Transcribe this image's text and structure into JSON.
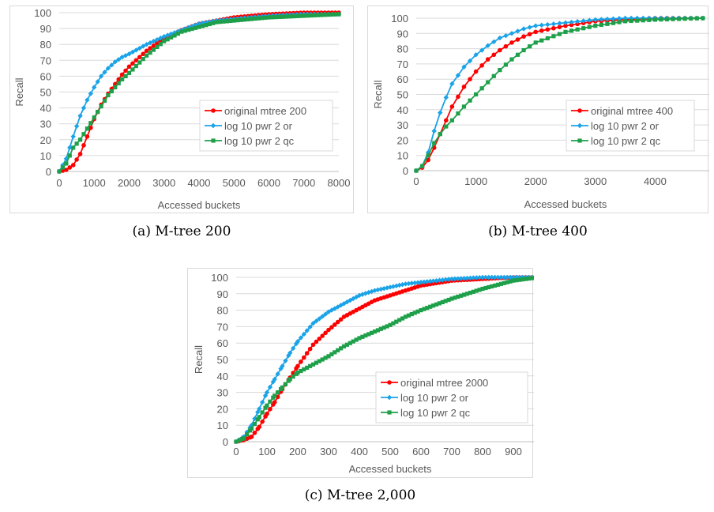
{
  "colors": {
    "original": "#ff0000",
    "log_or": "#1aa3e8",
    "log_qc": "#1ea04a",
    "grid": "#d9d9d9",
    "axis": "#bfbfbf",
    "text": "#595959"
  },
  "chart_data": [
    {
      "type": "line",
      "caption": "(a) M-tree 200",
      "xlabel": "Accessed buckets",
      "ylabel": "Recall",
      "xlim": [
        0,
        8000
      ],
      "ylim": [
        0,
        100
      ],
      "xticks": [
        0,
        1000,
        2000,
        3000,
        4000,
        5000,
        6000,
        7000,
        8000
      ],
      "yticks": [
        0,
        10,
        20,
        30,
        40,
        50,
        60,
        70,
        80,
        90,
        100
      ],
      "legend_position": "right-middle",
      "series": [
        {
          "name": "original mtree 200",
          "color_key": "original",
          "marker": "circle",
          "points": [
            [
              0,
              0
            ],
            [
              200,
              1
            ],
            [
              400,
              4
            ],
            [
              600,
              11
            ],
            [
              800,
              22
            ],
            [
              1000,
              33
            ],
            [
              1200,
              42
            ],
            [
              1400,
              49
            ],
            [
              1600,
              55
            ],
            [
              1800,
              61
            ],
            [
              2000,
              66
            ],
            [
              2500,
              76
            ],
            [
              3000,
              84
            ],
            [
              3500,
              89
            ],
            [
              4000,
              93
            ],
            [
              4500,
              95
            ],
            [
              5000,
              97
            ],
            [
              6000,
              99
            ],
            [
              7000,
              100
            ],
            [
              8000,
              100
            ]
          ]
        },
        {
          "name": "log 10 pwr 2 or",
          "color_key": "log_or",
          "marker": "diamond",
          "points": [
            [
              0,
              0
            ],
            [
              200,
              8
            ],
            [
              400,
              22
            ],
            [
              600,
              35
            ],
            [
              800,
              45
            ],
            [
              1000,
              53
            ],
            [
              1200,
              60
            ],
            [
              1400,
              65
            ],
            [
              1600,
              69
            ],
            [
              1800,
              72
            ],
            [
              2000,
              74
            ],
            [
              2500,
              80
            ],
            [
              3000,
              85
            ],
            [
              3500,
              89
            ],
            [
              4000,
              93
            ],
            [
              4500,
              95
            ],
            [
              5000,
              96
            ],
            [
              6000,
              98
            ],
            [
              7000,
              99
            ],
            [
              8000,
              99
            ]
          ]
        },
        {
          "name": "log 10 pwr 2 qc",
          "color_key": "log_qc",
          "marker": "square",
          "points": [
            [
              0,
              0
            ],
            [
              200,
              5
            ],
            [
              400,
              15
            ],
            [
              600,
              20
            ],
            [
              800,
              27
            ],
            [
              1000,
              34
            ],
            [
              1200,
              41
            ],
            [
              1400,
              48
            ],
            [
              1600,
              53
            ],
            [
              1800,
              58
            ],
            [
              2000,
              62
            ],
            [
              2500,
              73
            ],
            [
              3000,
              82
            ],
            [
              3500,
              88
            ],
            [
              4000,
              91
            ],
            [
              4500,
              94
            ],
            [
              5000,
              95
            ],
            [
              6000,
              97
            ],
            [
              7000,
              98
            ],
            [
              8000,
              99
            ]
          ]
        }
      ]
    },
    {
      "type": "line",
      "caption": "(b) M-tree 400",
      "xlabel": "Accessed buckets",
      "ylabel": "Recall",
      "xlim": [
        0,
        5000
      ],
      "ylim": [
        0,
        100
      ],
      "xticks": [
        0,
        1000,
        2000,
        3000,
        4000
      ],
      "yticks": [
        0,
        10,
        20,
        30,
        40,
        50,
        60,
        70,
        80,
        90,
        100
      ],
      "legend_position": "bottom-right",
      "series": [
        {
          "name": "original mtree 400",
          "color_key": "original",
          "marker": "circle",
          "points": [
            [
              0,
              0
            ],
            [
              100,
              2
            ],
            [
              200,
              7
            ],
            [
              300,
              15
            ],
            [
              400,
              24
            ],
            [
              500,
              33
            ],
            [
              600,
              42
            ],
            [
              800,
              55
            ],
            [
              1000,
              65
            ],
            [
              1200,
              73
            ],
            [
              1400,
              79
            ],
            [
              1600,
              84
            ],
            [
              1800,
              88
            ],
            [
              2000,
              91
            ],
            [
              2500,
              95
            ],
            [
              3000,
              98
            ],
            [
              3500,
              99
            ],
            [
              4000,
              100
            ],
            [
              4800,
              100
            ]
          ]
        },
        {
          "name": "log 10 pwr 2 or",
          "color_key": "log_or",
          "marker": "diamond",
          "points": [
            [
              0,
              0
            ],
            [
              100,
              3
            ],
            [
              200,
              12
            ],
            [
              300,
              26
            ],
            [
              400,
              38
            ],
            [
              500,
              48
            ],
            [
              600,
              57
            ],
            [
              800,
              68
            ],
            [
              1000,
              76
            ],
            [
              1200,
              82
            ],
            [
              1400,
              87
            ],
            [
              1600,
              90
            ],
            [
              1800,
              93
            ],
            [
              2000,
              95
            ],
            [
              2500,
              97
            ],
            [
              3000,
              99
            ],
            [
              3500,
              100
            ],
            [
              4000,
              100
            ],
            [
              4800,
              100
            ]
          ]
        },
        {
          "name": "log 10 pwr 2 qc",
          "color_key": "log_qc",
          "marker": "square",
          "points": [
            [
              0,
              0
            ],
            [
              100,
              3
            ],
            [
              200,
              10
            ],
            [
              300,
              18
            ],
            [
              400,
              24
            ],
            [
              500,
              29
            ],
            [
              600,
              33
            ],
            [
              800,
              42
            ],
            [
              1000,
              50
            ],
            [
              1200,
              58
            ],
            [
              1400,
              66
            ],
            [
              1600,
              73
            ],
            [
              1800,
              79
            ],
            [
              2000,
              84
            ],
            [
              2500,
              91
            ],
            [
              3000,
              95
            ],
            [
              3500,
              98
            ],
            [
              4000,
              99
            ],
            [
              4800,
              100
            ]
          ]
        }
      ]
    },
    {
      "type": "line",
      "caption": "(c) M-tree 2,000",
      "xlabel": "Accessed buckets",
      "ylabel": "Recall",
      "xlim": [
        0,
        1000
      ],
      "ylim": [
        0,
        100
      ],
      "xticks": [
        0,
        100,
        200,
        300,
        400,
        500,
        600,
        700,
        800,
        900
      ],
      "yticks": [
        0,
        10,
        20,
        30,
        40,
        50,
        60,
        70,
        80,
        90,
        100
      ],
      "legend_position": "bottom-right",
      "series": [
        {
          "name": "original mtree 2000",
          "color_key": "original",
          "marker": "circle",
          "points": [
            [
              0,
              0
            ],
            [
              25,
              1
            ],
            [
              50,
              3
            ],
            [
              75,
              9
            ],
            [
              100,
              17
            ],
            [
              125,
              24
            ],
            [
              150,
              32
            ],
            [
              175,
              39
            ],
            [
              200,
              46
            ],
            [
              250,
              59
            ],
            [
              300,
              68
            ],
            [
              350,
              76
            ],
            [
              400,
              81
            ],
            [
              450,
              86
            ],
            [
              500,
              89
            ],
            [
              550,
              92
            ],
            [
              600,
              95
            ],
            [
              700,
              98
            ],
            [
              800,
              99
            ],
            [
              900,
              100
            ],
            [
              980,
              100
            ]
          ]
        },
        {
          "name": "log 10 pwr 2 or",
          "color_key": "log_or",
          "marker": "diamond",
          "points": [
            [
              0,
              0
            ],
            [
              25,
              3
            ],
            [
              50,
              10
            ],
            [
              75,
              20
            ],
            [
              100,
              30
            ],
            [
              125,
              38
            ],
            [
              150,
              46
            ],
            [
              175,
              54
            ],
            [
              200,
              61
            ],
            [
              250,
              72
            ],
            [
              300,
              79
            ],
            [
              350,
              84
            ],
            [
              400,
              89
            ],
            [
              450,
              92
            ],
            [
              500,
              94
            ],
            [
              550,
              96
            ],
            [
              600,
              97
            ],
            [
              700,
              99
            ],
            [
              800,
              100
            ],
            [
              900,
              100
            ],
            [
              980,
              100
            ]
          ]
        },
        {
          "name": "log 10 pwr 2 qc",
          "color_key": "log_qc",
          "marker": "square",
          "points": [
            [
              0,
              0
            ],
            [
              25,
              2
            ],
            [
              50,
              8
            ],
            [
              75,
              15
            ],
            [
              100,
              22
            ],
            [
              125,
              28
            ],
            [
              150,
              33
            ],
            [
              175,
              38
            ],
            [
              200,
              42
            ],
            [
              250,
              47
            ],
            [
              300,
              52
            ],
            [
              350,
              58
            ],
            [
              400,
              63
            ],
            [
              450,
              67
            ],
            [
              500,
              71
            ],
            [
              550,
              76
            ],
            [
              600,
              80
            ],
            [
              700,
              87
            ],
            [
              800,
              93
            ],
            [
              900,
              98
            ],
            [
              980,
              100
            ]
          ]
        }
      ]
    }
  ]
}
